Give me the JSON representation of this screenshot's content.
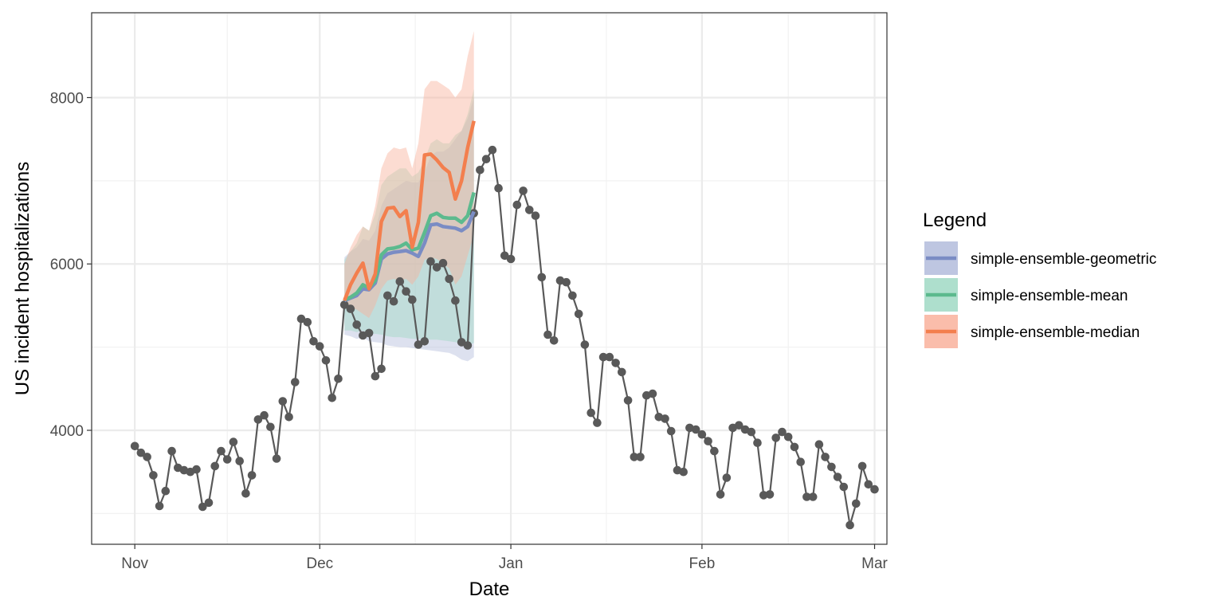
{
  "chart_data": {
    "type": "line",
    "title": "",
    "xlabel": "Date",
    "ylabel": "US incident hospitalizations",
    "x_ticks": [
      {
        "date": "2022-11-01",
        "label": "Nov"
      },
      {
        "date": "2022-12-01",
        "label": "Dec"
      },
      {
        "date": "2023-01-01",
        "label": "Jan"
      },
      {
        "date": "2023-02-01",
        "label": "Feb"
      },
      {
        "date": "2023-03-01",
        "label": "Mar"
      }
    ],
    "y_ticks": [
      4000,
      6000,
      8000
    ],
    "xlim": [
      "2022-10-25",
      "2023-03-03"
    ],
    "ylim": [
      2630,
      9020
    ],
    "grid": true,
    "legend": {
      "title": "Legend",
      "position": "right",
      "entries": [
        {
          "label": "simple-ensemble-geometric",
          "color": "#7a8cc4",
          "band_color": "#b3bcdc"
        },
        {
          "label": "simple-ensemble-mean",
          "color": "#5cba8e",
          "band_color": "#a0d9c4"
        },
        {
          "label": "simple-ensemble-median",
          "color": "#f37f4e",
          "band_color": "#f9b29c"
        }
      ]
    },
    "observed": {
      "color": "#595959",
      "start_date": "2022-11-01",
      "values": [
        3810,
        3730,
        3680,
        3460,
        3090,
        3270,
        3750,
        3550,
        3520,
        3500,
        3530,
        3080,
        3130,
        3570,
        3750,
        3650,
        3860,
        3630,
        3240,
        3460,
        4130,
        4180,
        4040,
        3660,
        4350,
        4160,
        4580,
        5340,
        5300,
        5070,
        5010,
        4840,
        4390,
        4620,
        5510,
        5460,
        5270,
        5140,
        5170,
        4650,
        4740,
        5620,
        5550,
        5790,
        5670,
        5570,
        5030,
        5070,
        6030,
        5960,
        6010,
        5820,
        5560,
        5060,
        5020,
        6610,
        7130,
        7260,
        7370,
        6910,
        6100,
        6060,
        6710,
        6880,
        6650,
        6580,
        5840,
        5150,
        5080,
        5800,
        5780,
        5620,
        5400,
        5030,
        4210,
        4090,
        4880,
        4880,
        4810,
        4700,
        4360,
        3680,
        3680,
        4420,
        4440,
        4160,
        4140,
        3990,
        3520,
        3500,
        4030,
        4010,
        3950,
        3870,
        3750,
        3230,
        3430,
        4030,
        4060,
        4010,
        3980,
        3850,
        3220,
        3230,
        3910,
        3980,
        3920,
        3800,
        3620,
        3200,
        3200,
        3830,
        3680,
        3560,
        3440,
        3320,
        2860,
        3120,
        3570,
        3350,
        3290
      ]
    },
    "forecasts": {
      "start_date": "2022-12-05",
      "series": [
        {
          "name": "simple-ensemble-geometric",
          "color": "#7a8cc4",
          "values": [
            5560,
            5590,
            5620,
            5700,
            5690,
            5770,
            6060,
            6120,
            6140,
            6150,
            6160,
            6130,
            6090,
            6250,
            6470,
            6480,
            6450,
            6440,
            6430,
            6400,
            6450,
            6630
          ],
          "lower": [
            5150,
            5130,
            5100,
            5120,
            5070,
            5060,
            5050,
            5020,
            5010,
            5000,
            5000,
            4990,
            4980,
            4970,
            4960,
            4950,
            4940,
            4930,
            4900,
            4850,
            4830,
            4880
          ],
          "upper": [
            6080,
            6150,
            6200,
            6300,
            6280,
            6400,
            6700,
            6850,
            6900,
            6950,
            7000,
            6980,
            6980,
            7100,
            7300,
            7350,
            7350,
            7400,
            7500,
            7600,
            7750,
            8000
          ]
        },
        {
          "name": "simple-ensemble-mean",
          "color": "#5cba8e",
          "values": [
            5570,
            5600,
            5650,
            5750,
            5710,
            5800,
            6110,
            6180,
            6190,
            6210,
            6250,
            6170,
            6190,
            6380,
            6580,
            6610,
            6560,
            6550,
            6550,
            6500,
            6580,
            6860
          ],
          "lower": [
            5200,
            5200,
            5180,
            5200,
            5160,
            5160,
            5150,
            5130,
            5120,
            5120,
            5110,
            5100,
            5100,
            5100,
            5090,
            5090,
            5080,
            5070,
            5060,
            5040,
            5020,
            5050
          ],
          "upper": [
            6050,
            6150,
            6250,
            6450,
            6400,
            6600,
            6950,
            7050,
            7100,
            7150,
            7150,
            7050,
            7100,
            7250,
            7450,
            7500,
            7450,
            7450,
            7550,
            7600,
            7800,
            8100
          ]
        },
        {
          "name": "simple-ensemble-median",
          "color": "#f37f4e",
          "values": [
            5560,
            5750,
            5890,
            6010,
            5700,
            5880,
            6510,
            6670,
            6680,
            6570,
            6640,
            6200,
            6500,
            7310,
            7320,
            7250,
            7160,
            7100,
            6780,
            7000,
            7400,
            7720
          ],
          "lower": [
            5500,
            5480,
            5450,
            5400,
            5350,
            5500,
            5700,
            5800,
            5820,
            5800,
            5820,
            5750,
            5850,
            6050,
            6080,
            6060,
            6000,
            5950,
            5750,
            5850,
            6100,
            6350
          ],
          "upper": [
            6000,
            6200,
            6350,
            6450,
            6400,
            6700,
            7150,
            7330,
            7400,
            7380,
            7400,
            7150,
            7450,
            8100,
            8200,
            8200,
            8150,
            8100,
            8000,
            8100,
            8500,
            8800
          ]
        }
      ]
    }
  }
}
